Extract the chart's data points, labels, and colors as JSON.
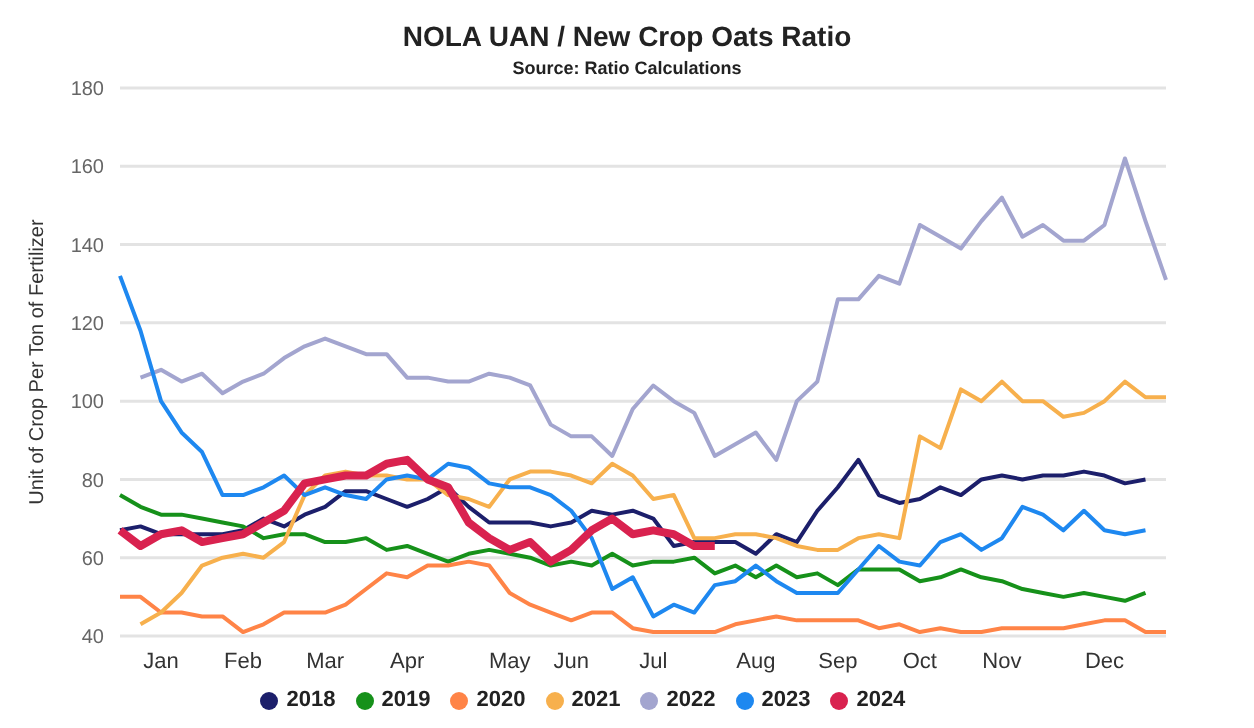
{
  "chart_data": {
    "type": "line",
    "title": "NOLA UAN / New Crop Oats Ratio",
    "subtitle": "Source: Ratio Calculations",
    "ylabel": "Unit of Crop Per Ton of Fertilizer",
    "categories": [
      null,
      null,
      "Jan",
      null,
      null,
      null,
      "Feb",
      null,
      null,
      null,
      "Mar",
      null,
      null,
      null,
      "Apr",
      null,
      null,
      null,
      null,
      "May",
      null,
      null,
      "Jun",
      null,
      null,
      null,
      "Jul",
      null,
      null,
      null,
      null,
      "Aug",
      null,
      null,
      null,
      "Sep",
      null,
      null,
      null,
      "Oct",
      null,
      null,
      null,
      "Nov",
      null,
      null,
      null,
      null,
      "Dec",
      null,
      null,
      null
    ],
    "ylim": [
      40,
      180
    ],
    "yticks": [
      40,
      60,
      80,
      100,
      120,
      140,
      160,
      180
    ],
    "grid": "y",
    "legend": "bottom",
    "marker": "none",
    "line_style": "solid",
    "series": [
      {
        "name": "2018",
        "color": "#1c1f6b",
        "values": [
          67,
          68,
          66,
          66,
          66,
          66,
          67,
          70,
          68,
          71,
          73,
          77,
          77,
          75,
          73,
          75,
          78,
          73,
          69,
          69,
          69,
          68,
          69,
          72,
          71,
          72,
          70,
          63,
          64,
          64,
          64,
          61,
          66,
          64,
          72,
          78,
          85,
          76,
          74,
          75,
          78,
          76,
          80,
          81,
          80,
          81,
          81,
          82,
          81,
          79,
          80,
          null
        ]
      },
      {
        "name": "2019",
        "color": "#16911a",
        "values": [
          76,
          73,
          71,
          71,
          70,
          69,
          68,
          65,
          66,
          66,
          64,
          64,
          65,
          62,
          63,
          61,
          59,
          61,
          62,
          61,
          60,
          58,
          59,
          58,
          61,
          58,
          59,
          59,
          60,
          56,
          58,
          55,
          58,
          55,
          56,
          53,
          57,
          57,
          57,
          54,
          55,
          57,
          55,
          54,
          52,
          51,
          50,
          51,
          50,
          49,
          51,
          null
        ]
      },
      {
        "name": "2020",
        "color": "#ff8447",
        "values": [
          50,
          50,
          46,
          46,
          45,
          45,
          41,
          43,
          46,
          46,
          46,
          48,
          52,
          56,
          55,
          58,
          58,
          59,
          58,
          51,
          48,
          46,
          44,
          46,
          46,
          42,
          41,
          41,
          41,
          41,
          43,
          44,
          45,
          44,
          44,
          44,
          44,
          42,
          43,
          41,
          42,
          41,
          41,
          42,
          42,
          42,
          42,
          43,
          44,
          44,
          41,
          41
        ]
      },
      {
        "name": "2021",
        "color": "#f7b04d",
        "values": [
          null,
          43,
          46,
          51,
          58,
          60,
          61,
          60,
          64,
          76,
          81,
          82,
          81,
          81,
          80,
          80,
          76,
          75,
          73,
          80,
          82,
          82,
          81,
          79,
          84,
          81,
          75,
          76,
          65,
          65,
          66,
          66,
          65,
          63,
          62,
          62,
          65,
          66,
          65,
          91,
          88,
          103,
          100,
          105,
          100,
          100,
          96,
          97,
          100,
          105,
          101,
          101
        ]
      },
      {
        "name": "2022",
        "color": "#a3a5cf",
        "values": [
          null,
          106,
          108,
          105,
          107,
          102,
          105,
          107,
          111,
          114,
          116,
          114,
          112,
          112,
          106,
          106,
          105,
          105,
          107,
          106,
          104,
          94,
          91,
          91,
          86,
          98,
          104,
          100,
          97,
          86,
          89,
          92,
          85,
          100,
          105,
          126,
          126,
          132,
          130,
          145,
          142,
          139,
          146,
          152,
          142,
          145,
          141,
          141,
          145,
          162,
          146,
          131
        ]
      },
      {
        "name": "2023",
        "color": "#1e88f0",
        "values": [
          132,
          118,
          100,
          92,
          87,
          76,
          76,
          78,
          81,
          76,
          78,
          76,
          75,
          80,
          81,
          80,
          84,
          83,
          79,
          78,
          78,
          76,
          72,
          65,
          52,
          55,
          45,
          48,
          46,
          53,
          54,
          58,
          54,
          51,
          51,
          51,
          57,
          63,
          59,
          58,
          64,
          66,
          62,
          65,
          73,
          71,
          67,
          72,
          67,
          66,
          67,
          null
        ]
      },
      {
        "name": "2024",
        "color": "#d9224f",
        "values": [
          67,
          63,
          66,
          67,
          64,
          65,
          66,
          69,
          72,
          79,
          80,
          81,
          81,
          84,
          85,
          80,
          78,
          69,
          65,
          62,
          64,
          59,
          62,
          67,
          70,
          66,
          67,
          66,
          63,
          63,
          null,
          null,
          null,
          null,
          null,
          null,
          null,
          null,
          null,
          null,
          null,
          null,
          null,
          null,
          null,
          null,
          null,
          null,
          null,
          null,
          null,
          null
        ]
      }
    ]
  }
}
